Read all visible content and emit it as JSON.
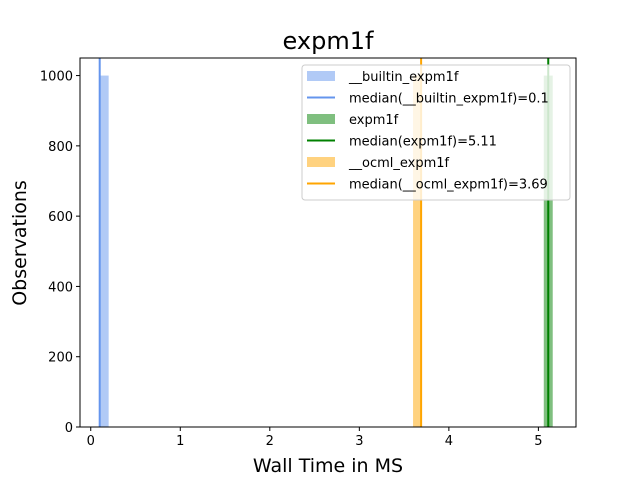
{
  "chart_data": {
    "type": "bar",
    "title": "expm1f",
    "xlabel": "Wall Time in MS",
    "ylabel": "Observations",
    "xlim": [
      -0.12,
      5.42
    ],
    "ylim": [
      0,
      1050
    ],
    "xticks": [
      0,
      1,
      2,
      3,
      4,
      5
    ],
    "yticks": [
      0,
      200,
      400,
      600,
      800,
      1000
    ],
    "grid": false,
    "legend_position": "top-right",
    "series": [
      {
        "name": "__builtin_expm1f",
        "kind": "histogram",
        "color": "#6495ED",
        "opacity": 0.5,
        "bins": [
          {
            "x0": 0.1,
            "x1": 0.2,
            "count": 1000
          }
        ]
      },
      {
        "name": "median(__builtin_expm1f)=0.1",
        "kind": "vline",
        "color": "#6495ED",
        "x": 0.1
      },
      {
        "name": "expm1f",
        "kind": "histogram",
        "color": "#008000",
        "opacity": 0.5,
        "bins": [
          {
            "x0": 5.06,
            "x1": 5.16,
            "count": 1000
          }
        ]
      },
      {
        "name": "median(expm1f)=5.11",
        "kind": "vline",
        "color": "#008000",
        "x": 5.11
      },
      {
        "name": "__ocml_expm1f",
        "kind": "histogram",
        "color": "#FFA500",
        "opacity": 0.5,
        "bins": [
          {
            "x0": 3.6,
            "x1": 3.7,
            "count": 1000
          }
        ]
      },
      {
        "name": "median(__ocml_expm1f)=3.69",
        "kind": "vline",
        "color": "#FFA500",
        "x": 3.69
      }
    ]
  }
}
